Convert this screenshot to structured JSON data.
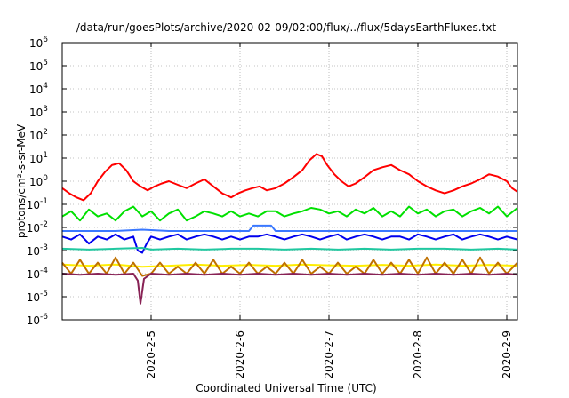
{
  "chart_data": {
    "type": "line",
    "title": "/data/run/goesPlots/archive/2020-02-09/02:00/flux/../flux/5daysEarthFluxes.txt",
    "xlabel": "Coordinated Universal Time (UTC)",
    "ylabel": "protons/cm²-s-sr-MeV",
    "y_scale": "log",
    "ylim": [
      1e-06,
      1000000.0
    ],
    "x_unit": "days since 2020-02-01 (axis labelled by date)",
    "xlim": [
      4.0,
      9.12
    ],
    "x_ticks": [
      {
        "value": 5,
        "label": "2020-2-5"
      },
      {
        "value": 6,
        "label": "2020-2-6"
      },
      {
        "value": 7,
        "label": "2020-2-7"
      },
      {
        "value": 8,
        "label": "2020-2-8"
      },
      {
        "value": 9,
        "label": "2020-2-9"
      }
    ],
    "y_ticks": [
      {
        "value": -6,
        "base": "10",
        "exp": "-6"
      },
      {
        "value": -5,
        "base": "10",
        "exp": "-5"
      },
      {
        "value": -4,
        "base": "10",
        "exp": "-4"
      },
      {
        "value": -3,
        "base": "10",
        "exp": "-3"
      },
      {
        "value": -2,
        "base": "10",
        "exp": "-2"
      },
      {
        "value": -1,
        "base": "10",
        "exp": "-1"
      },
      {
        "value": 0,
        "base": "10",
        "exp": "0"
      },
      {
        "value": 1,
        "base": "10",
        "exp": "1"
      },
      {
        "value": 2,
        "base": "10",
        "exp": "2"
      },
      {
        "value": 3,
        "base": "10",
        "exp": "3"
      },
      {
        "value": 4,
        "base": "10",
        "exp": "4"
      },
      {
        "value": 5,
        "base": "10",
        "exp": "5"
      },
      {
        "value": 6,
        "base": "10",
        "exp": "6"
      }
    ],
    "grid": true,
    "series": [
      {
        "color": "#ff0000",
        "x": [
          4.0,
          4.08,
          4.16,
          4.24,
          4.32,
          4.4,
          4.48,
          4.56,
          4.64,
          4.72,
          4.8,
          4.88,
          4.96,
          5.04,
          5.12,
          5.2,
          5.3,
          5.4,
          5.5,
          5.6,
          5.7,
          5.8,
          5.9,
          5.98,
          6.06,
          6.14,
          6.22,
          6.3,
          6.4,
          6.5,
          6.6,
          6.7,
          6.78,
          6.86,
          6.92,
          6.98,
          7.06,
          7.14,
          7.22,
          7.3,
          7.4,
          7.5,
          7.6,
          7.7,
          7.8,
          7.9,
          8.0,
          8.1,
          8.2,
          8.3,
          8.4,
          8.5,
          8.6,
          8.7,
          8.8,
          8.9,
          9.0,
          9.06,
          9.12
        ],
        "y": [
          0.5,
          0.3,
          0.2,
          0.15,
          0.3,
          1.0,
          2.5,
          5.0,
          6.0,
          3.0,
          1.0,
          0.6,
          0.4,
          0.6,
          0.8,
          1.0,
          0.7,
          0.5,
          0.8,
          1.2,
          0.6,
          0.3,
          0.2,
          0.3,
          0.4,
          0.5,
          0.6,
          0.4,
          0.5,
          0.8,
          1.5,
          3.0,
          8.0,
          15.0,
          12.0,
          5.0,
          2.0,
          1.0,
          0.6,
          0.8,
          1.5,
          3.0,
          4.0,
          5.0,
          3.0,
          2.0,
          1.0,
          0.6,
          0.4,
          0.3,
          0.4,
          0.6,
          0.8,
          1.2,
          2.0,
          1.6,
          1.0,
          0.5,
          0.35
        ]
      },
      {
        "color": "#00e000",
        "x": [
          4.0,
          4.1,
          4.2,
          4.3,
          4.4,
          4.5,
          4.6,
          4.7,
          4.8,
          4.9,
          5.0,
          5.1,
          5.2,
          5.3,
          5.4,
          5.5,
          5.6,
          5.7,
          5.8,
          5.9,
          6.0,
          6.1,
          6.2,
          6.3,
          6.4,
          6.5,
          6.6,
          6.7,
          6.8,
          6.9,
          7.0,
          7.1,
          7.2,
          7.3,
          7.4,
          7.5,
          7.6,
          7.7,
          7.8,
          7.9,
          8.0,
          8.1,
          8.2,
          8.3,
          8.4,
          8.5,
          8.6,
          8.7,
          8.8,
          8.9,
          9.0,
          9.12
        ],
        "y": [
          0.03,
          0.05,
          0.02,
          0.06,
          0.03,
          0.04,
          0.02,
          0.05,
          0.08,
          0.03,
          0.05,
          0.02,
          0.04,
          0.06,
          0.02,
          0.03,
          0.05,
          0.04,
          0.03,
          0.05,
          0.03,
          0.04,
          0.03,
          0.05,
          0.05,
          0.03,
          0.04,
          0.05,
          0.07,
          0.06,
          0.04,
          0.05,
          0.03,
          0.06,
          0.04,
          0.07,
          0.03,
          0.05,
          0.03,
          0.08,
          0.04,
          0.06,
          0.03,
          0.05,
          0.06,
          0.03,
          0.05,
          0.07,
          0.04,
          0.08,
          0.03,
          0.07
        ]
      },
      {
        "color": "#0000ee",
        "x": [
          4.0,
          4.1,
          4.2,
          4.3,
          4.4,
          4.5,
          4.6,
          4.7,
          4.8,
          4.85,
          4.9,
          4.95,
          5.0,
          5.1,
          5.2,
          5.3,
          5.4,
          5.5,
          5.6,
          5.7,
          5.8,
          5.9,
          6.0,
          6.1,
          6.2,
          6.3,
          6.4,
          6.5,
          6.6,
          6.7,
          6.8,
          6.9,
          7.0,
          7.1,
          7.2,
          7.3,
          7.4,
          7.5,
          7.6,
          7.7,
          7.8,
          7.9,
          8.0,
          8.1,
          8.2,
          8.3,
          8.4,
          8.5,
          8.6,
          8.7,
          8.8,
          8.9,
          9.0,
          9.12
        ],
        "y": [
          0.004,
          0.003,
          0.005,
          0.002,
          0.004,
          0.003,
          0.005,
          0.003,
          0.004,
          0.001,
          0.0008,
          0.002,
          0.004,
          0.003,
          0.004,
          0.005,
          0.003,
          0.004,
          0.005,
          0.004,
          0.003,
          0.004,
          0.003,
          0.004,
          0.004,
          0.005,
          0.004,
          0.003,
          0.004,
          0.005,
          0.004,
          0.003,
          0.004,
          0.005,
          0.003,
          0.004,
          0.005,
          0.004,
          0.003,
          0.004,
          0.004,
          0.003,
          0.005,
          0.004,
          0.003,
          0.004,
          0.005,
          0.003,
          0.004,
          0.005,
          0.004,
          0.003,
          0.004,
          0.003
        ]
      },
      {
        "color": "#3a78ff",
        "x": [
          4.0,
          4.3,
          4.6,
          4.9,
          5.2,
          5.5,
          5.8,
          6.0,
          6.1,
          6.15,
          6.35,
          6.4,
          6.7,
          7.0,
          7.3,
          7.6,
          7.9,
          8.2,
          8.5,
          8.8,
          9.12
        ],
        "y": [
          0.007,
          0.007,
          0.007,
          0.008,
          0.007,
          0.007,
          0.007,
          0.007,
          0.007,
          0.012,
          0.012,
          0.007,
          0.007,
          0.007,
          0.007,
          0.007,
          0.007,
          0.007,
          0.007,
          0.007,
          0.007
        ]
      },
      {
        "color": "#20c8a0",
        "x": [
          4.0,
          4.3,
          4.6,
          4.9,
          5.0,
          5.3,
          5.6,
          5.9,
          6.2,
          6.5,
          6.8,
          7.1,
          7.4,
          7.7,
          8.0,
          8.3,
          8.6,
          8.9,
          9.12
        ],
        "y": [
          0.0012,
          0.0011,
          0.0012,
          0.0013,
          0.0011,
          0.0012,
          0.0011,
          0.0012,
          0.0012,
          0.0011,
          0.0012,
          0.0011,
          0.0012,
          0.0011,
          0.0012,
          0.0012,
          0.0011,
          0.0012,
          0.0011
        ]
      },
      {
        "color": "#ffee00",
        "x": [
          4.0,
          4.3,
          4.6,
          4.9,
          5.2,
          5.5,
          5.8,
          6.1,
          6.4,
          6.7,
          7.0,
          7.3,
          7.6,
          7.9,
          8.2,
          8.5,
          8.8,
          9.12
        ],
        "y": [
          0.00025,
          0.00022,
          0.00025,
          0.0002,
          0.00022,
          0.00025,
          0.00022,
          0.00024,
          0.00022,
          0.00025,
          0.00023,
          0.00022,
          0.00024,
          0.00022,
          0.00025,
          0.00022,
          0.00024,
          0.00022
        ]
      },
      {
        "color": "#c07000",
        "x": [
          4.0,
          4.1,
          4.2,
          4.3,
          4.4,
          4.5,
          4.6,
          4.7,
          4.8,
          4.9,
          5.0,
          5.1,
          5.2,
          5.3,
          5.4,
          5.5,
          5.6,
          5.7,
          5.8,
          5.9,
          6.0,
          6.1,
          6.2,
          6.3,
          6.4,
          6.5,
          6.6,
          6.7,
          6.8,
          6.9,
          7.0,
          7.1,
          7.2,
          7.3,
          7.4,
          7.5,
          7.6,
          7.7,
          7.8,
          7.9,
          8.0,
          8.1,
          8.2,
          8.3,
          8.4,
          8.5,
          8.6,
          8.7,
          8.8,
          8.9,
          9.0,
          9.12
        ],
        "y": [
          0.0003,
          0.0001,
          0.0004,
          0.0001,
          0.0003,
          0.0001,
          0.0005,
          0.0001,
          0.0003,
          8e-05,
          0.0001,
          0.0003,
          0.0001,
          0.0002,
          0.0001,
          0.0003,
          0.0001,
          0.0004,
          0.0001,
          0.0002,
          0.0001,
          0.0003,
          0.0001,
          0.0002,
          0.0001,
          0.0003,
          0.0001,
          0.0004,
          0.0001,
          0.0002,
          0.0001,
          0.0003,
          0.0001,
          0.0002,
          0.0001,
          0.0004,
          0.0001,
          0.0003,
          0.0001,
          0.0004,
          0.0001,
          0.0005,
          0.0001,
          0.0003,
          0.0001,
          0.0004,
          0.0001,
          0.0005,
          0.0001,
          0.0003,
          0.0001,
          0.0003
        ]
      },
      {
        "color": "#882255",
        "x": [
          4.0,
          4.2,
          4.4,
          4.6,
          4.8,
          4.85,
          4.88,
          4.92,
          5.0,
          5.2,
          5.4,
          5.6,
          5.8,
          6.0,
          6.2,
          6.4,
          6.6,
          6.8,
          7.0,
          7.2,
          7.4,
          7.6,
          7.8,
          8.0,
          8.2,
          8.4,
          8.6,
          8.8,
          9.0,
          9.12
        ],
        "y": [
          0.0001,
          9e-05,
          0.0001,
          9e-05,
          0.0001,
          5e-05,
          5e-06,
          6e-05,
          0.0001,
          9e-05,
          0.0001,
          9e-05,
          0.0001,
          9e-05,
          0.0001,
          9e-05,
          0.0001,
          9e-05,
          0.0001,
          9e-05,
          0.0001,
          9e-05,
          0.0001,
          9e-05,
          0.0001,
          9e-05,
          0.0001,
          9e-05,
          0.0001,
          9e-05
        ]
      }
    ]
  }
}
